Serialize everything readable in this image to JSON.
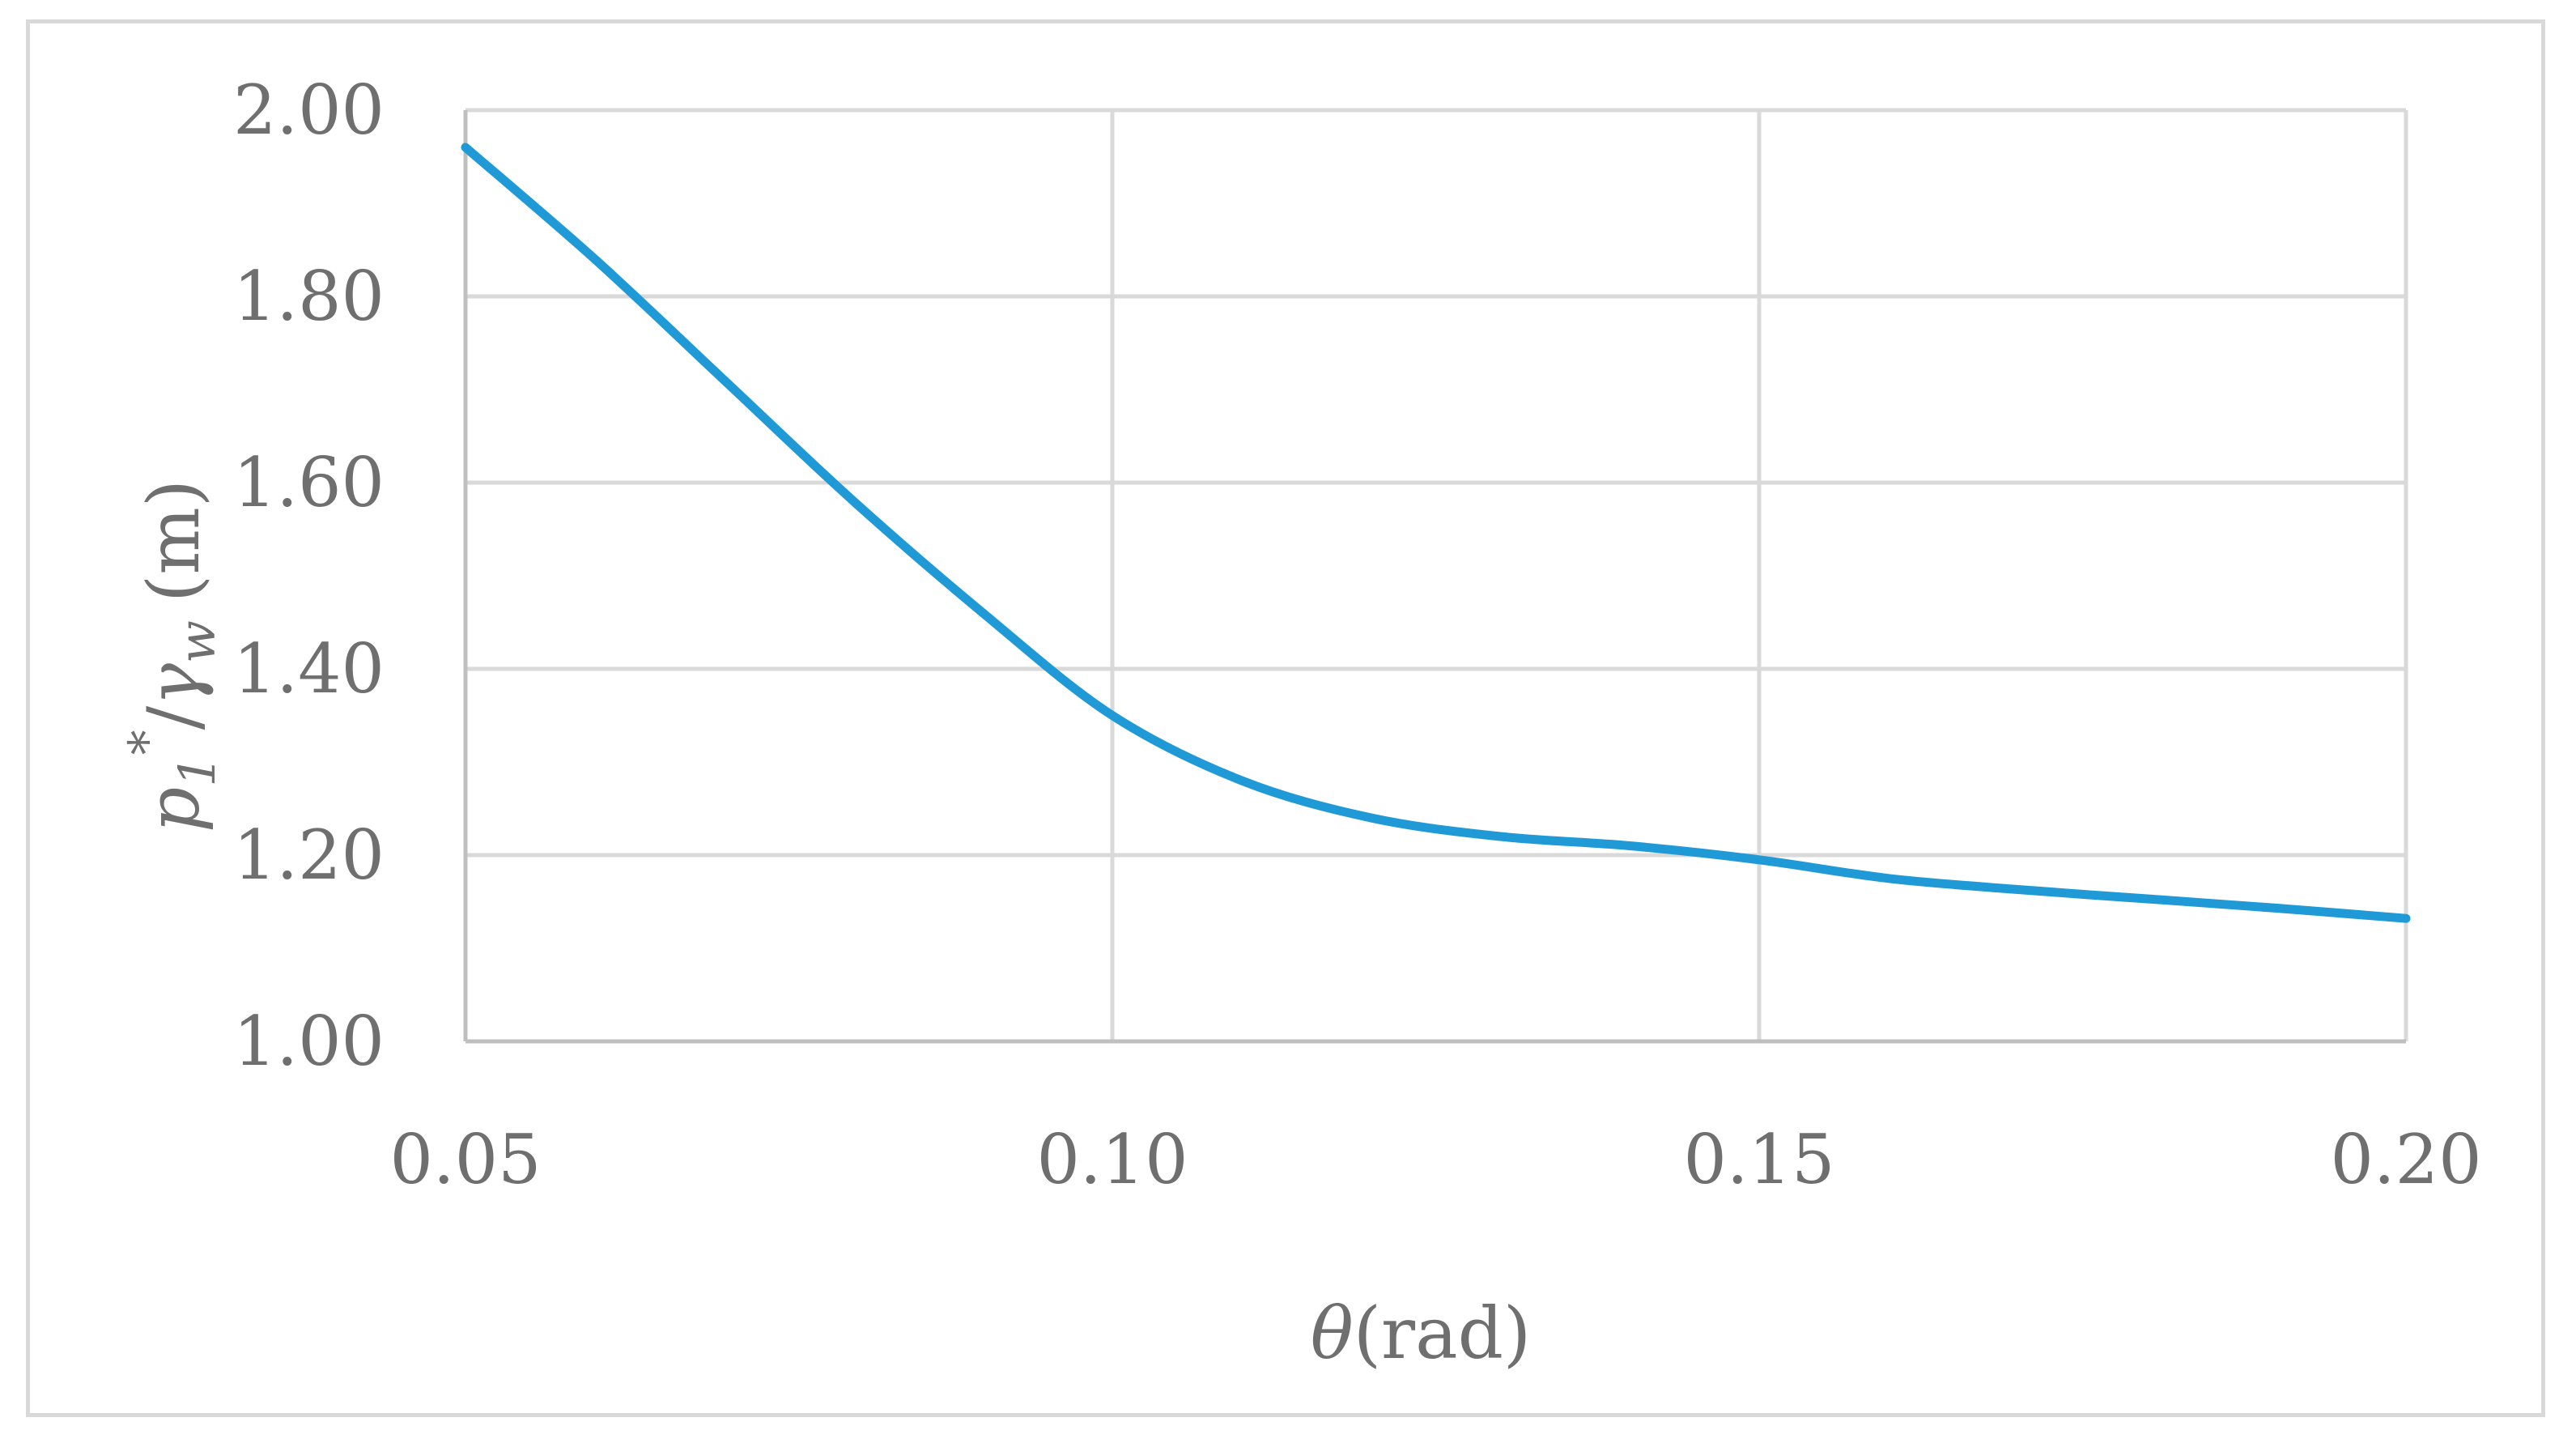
{
  "chart_data": {
    "type": "line",
    "title": "",
    "xlabel": {
      "symbol": "θ",
      "unit": "(rad)"
    },
    "ylabel": {
      "symbol": "p",
      "subscript": "1",
      "superscript": "*",
      "separator": "/",
      "denominator_symbol": "γ",
      "denominator_subscript": "w",
      "unit": "(m)"
    },
    "xlim": [
      0.05,
      0.2
    ],
    "ylim": [
      1.0,
      2.0
    ],
    "x_ticks": [
      "0.05",
      "0.10",
      "0.15",
      "0.20"
    ],
    "x_tick_values": [
      0.05,
      0.1,
      0.15,
      0.2
    ],
    "y_ticks": [
      "1.00",
      "1.20",
      "1.40",
      "1.60",
      "1.80",
      "2.00"
    ],
    "y_tick_values": [
      1.0,
      1.2,
      1.4,
      1.6,
      1.8,
      2.0
    ],
    "grid": true,
    "legend": "none",
    "series": [
      {
        "color": "#1f9ad6",
        "x": [
          0.05,
          0.06,
          0.07,
          0.08,
          0.09,
          0.1,
          0.11,
          0.12,
          0.13,
          0.14,
          0.15,
          0.16,
          0.17,
          0.18,
          0.19,
          0.2
        ],
        "y": [
          1.96,
          1.84,
          1.71,
          1.58,
          1.46,
          1.35,
          1.28,
          1.24,
          1.22,
          1.21,
          1.195,
          1.175,
          1.163,
          1.153,
          1.143,
          1.132
        ]
      }
    ]
  },
  "colors": {
    "line": "#1f9ad6",
    "grid": "#d9d9d9",
    "axis": "#bfbfbf",
    "text": "#6f6f6f",
    "frame": "#d9d9d9"
  }
}
